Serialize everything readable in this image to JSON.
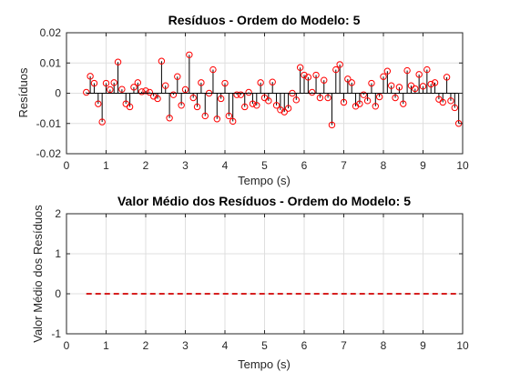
{
  "colors": {
    "stem": "#000000",
    "marker": "#ff0000",
    "mean_line": "#d62020",
    "grid": "#dfdfdf"
  },
  "chart_data": [
    {
      "type": "stem",
      "title": "Resíduos - Ordem do Modelo: 5",
      "xlabel": "Tempo (s)",
      "ylabel": "Resíduos",
      "xlim": [
        0,
        10
      ],
      "ylim": [
        -0.02,
        0.02
      ],
      "xticks": [
        "0",
        "1",
        "2",
        "3",
        "4",
        "5",
        "6",
        "7",
        "8",
        "9",
        "10"
      ],
      "yticks": [
        "-0.02",
        "-0.01",
        "0",
        "0.01",
        "0.02"
      ],
      "grid": true,
      "marker": "circle",
      "x": [
        0.5,
        0.6,
        0.7,
        0.8,
        0.9,
        1.0,
        1.1,
        1.2,
        1.3,
        1.4,
        1.5,
        1.6,
        1.7,
        1.8,
        1.9,
        2.0,
        2.1,
        2.2,
        2.3,
        2.4,
        2.5,
        2.6,
        2.7,
        2.8,
        2.9,
        3.0,
        3.1,
        3.2,
        3.3,
        3.4,
        3.5,
        3.6,
        3.7,
        3.8,
        3.9,
        4.0,
        4.1,
        4.2,
        4.3,
        4.4,
        4.5,
        4.6,
        4.7,
        4.8,
        4.9,
        5.0,
        5.1,
        5.2,
        5.3,
        5.4,
        5.5,
        5.6,
        5.7,
        5.8,
        5.9,
        6.0,
        6.1,
        6.2,
        6.3,
        6.4,
        6.5,
        6.6,
        6.7,
        6.8,
        6.9,
        7.0,
        7.1,
        7.2,
        7.3,
        7.4,
        7.5,
        7.6,
        7.7,
        7.8,
        7.9,
        8.0,
        8.1,
        8.2,
        8.3,
        8.4,
        8.5,
        8.6,
        8.7,
        8.8,
        8.9,
        9.0,
        9.1,
        9.2,
        9.3,
        9.4,
        9.5,
        9.6,
        9.7,
        9.8,
        9.9
      ],
      "values": [
        0.0003,
        0.0056,
        0.0033,
        -0.0035,
        -0.0095,
        0.0033,
        0.0012,
        0.0035,
        0.0103,
        0.0013,
        -0.0035,
        -0.0045,
        0.002,
        0.0035,
        0.0005,
        0.0008,
        0.0003,
        -0.001,
        -0.0018,
        0.0106,
        0.0025,
        -0.0082,
        -0.0005,
        0.0055,
        -0.004,
        0.0012,
        0.0127,
        -0.0015,
        -0.0045,
        0.0035,
        -0.0075,
        0,
        0.0078,
        -0.0085,
        -0.0018,
        0.0033,
        -0.0075,
        -0.0093,
        -0.0005,
        -0.0005,
        -0.0045,
        0.0003,
        -0.0035,
        -0.004,
        0.0035,
        -0.0015,
        -0.0025,
        0.0037,
        -0.004,
        -0.0055,
        -0.0062,
        -0.005,
        0,
        -0.0022,
        0.0085,
        0.006,
        0.0053,
        0.0003,
        0.006,
        -0.0015,
        0.0043,
        -0.0015,
        -0.0105,
        0.0078,
        0.0095,
        -0.003,
        0.0047,
        0.0035,
        -0.0043,
        -0.0035,
        -0.0005,
        -0.0025,
        0.0033,
        -0.0043,
        -0.0012,
        0.0055,
        0.0073,
        0.0025,
        -0.0015,
        0.002,
        -0.0035,
        0.0075,
        0.0025,
        0.0015,
        0.0062,
        0.0023,
        0.0078,
        0.003,
        0.0035,
        -0.002,
        -0.003,
        0.0053,
        -0.0025,
        -0.0048,
        -0.01
      ]
    },
    {
      "type": "line",
      "title": "Valor Médio dos Resíduos - Ordem do Modelo: 5",
      "xlabel": "Tempo (s)",
      "ylabel": "Valor Médio dos Resíduos",
      "xlim": [
        0,
        10
      ],
      "ylim": [
        -1,
        2
      ],
      "xticks": [
        "0",
        "1",
        "2",
        "3",
        "4",
        "5",
        "6",
        "7",
        "8",
        "9",
        "10"
      ],
      "yticks": [
        "-1",
        "0",
        "1",
        "2"
      ],
      "grid": true,
      "line_style": "dashed",
      "x": [
        0.5,
        9.9
      ],
      "values": [
        0,
        0
      ]
    }
  ]
}
